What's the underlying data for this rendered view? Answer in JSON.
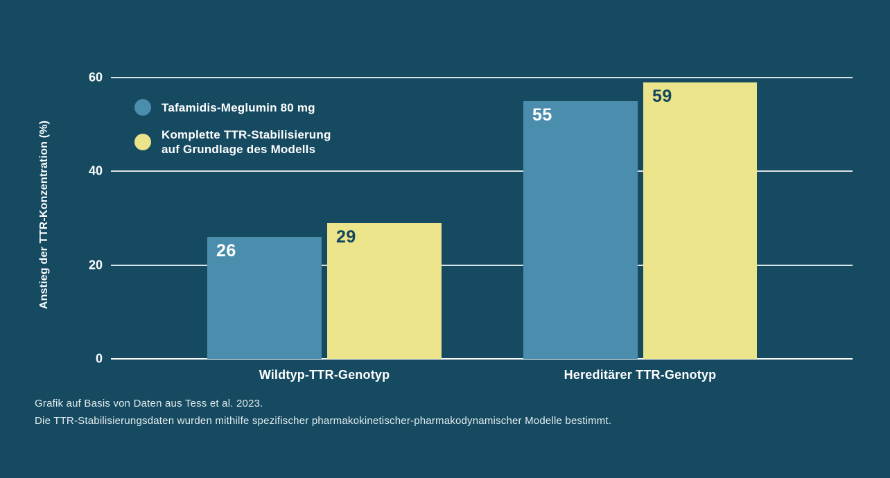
{
  "colors": {
    "background": "#154a61",
    "bar_blue": "#4b8dac",
    "bar_yellow": "#ece48b",
    "gridline": "#dbe3e7",
    "text_light": "#ffffff",
    "value_label_on_yellow": "#12465c"
  },
  "chart_data": {
    "type": "bar",
    "title": "",
    "categories": [
      "Wildtyp-TTR-Genotyp",
      "Hereditärer TTR-Genotyp"
    ],
    "series": [
      {
        "name": "Tafamidis-Meglumin 80 mg",
        "values": [
          26,
          55
        ],
        "color": "#4b8dac"
      },
      {
        "name": "Komplette TTR-Stabilisierung auf Grundlage des Modells",
        "values": [
          29,
          59
        ],
        "color": "#ece48b"
      }
    ],
    "xlabel": "",
    "ylabel": "Anstieg der TTR-Konzentration (%)",
    "ylim": [
      0,
      60
    ],
    "yticks": [
      0,
      20,
      40,
      60
    ],
    "grid": true,
    "legend_position": "top-left",
    "value_labels": "inside-top-left"
  },
  "legend": {
    "items": [
      {
        "label": "Tafamidis-Meglumin 80 mg"
      },
      {
        "line1": "Komplette TTR-Stabilisierung",
        "line2": "auf Grundlage des Modells"
      }
    ]
  },
  "footer": {
    "line1": "Grafik auf Basis von Daten aus Tess et al. 2023.",
    "line2": "Die TTR-Stabilisierungsdaten wurden mithilfe spezifischer pharmakokinetischer-pharmakodynamischer Modelle bestimmt."
  }
}
